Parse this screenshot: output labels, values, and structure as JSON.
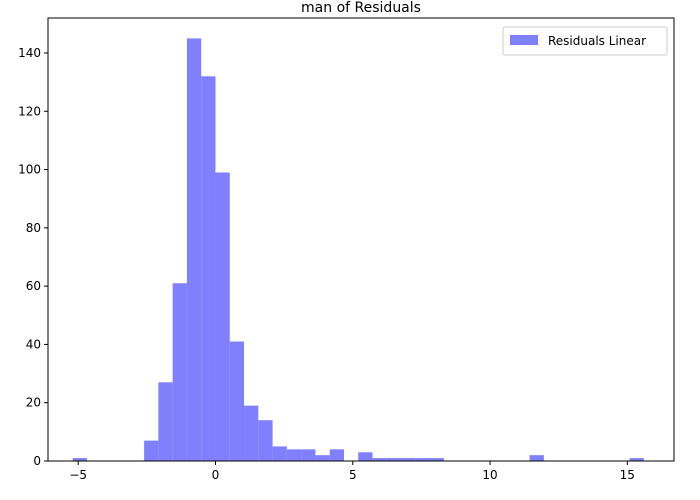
{
  "chart_data": {
    "type": "bar",
    "title": "man of Residuals",
    "xlabel": "",
    "ylabel": "",
    "xlim": [
      -6.1,
      16.7
    ],
    "ylim": [
      0,
      152
    ],
    "x_ticks": [
      -5,
      0,
      5,
      10,
      15
    ],
    "y_ticks": [
      0,
      20,
      40,
      60,
      80,
      100,
      120,
      140
    ],
    "bin_width": 0.52,
    "bin_left_edges": [
      -5.2,
      -2.6,
      -2.08,
      -1.56,
      -1.04,
      -0.52,
      0.0,
      0.52,
      1.04,
      1.56,
      2.08,
      2.6,
      3.12,
      3.64,
      4.16,
      5.2,
      5.72,
      6.24,
      6.76,
      7.28,
      7.8,
      11.44,
      15.08
    ],
    "values": [
      1,
      7,
      27,
      61,
      145,
      132,
      99,
      41,
      19,
      14,
      5,
      4,
      4,
      2,
      4,
      3,
      1,
      1,
      1,
      1,
      1,
      2,
      1
    ],
    "color": "#8080ff",
    "grid": false,
    "legend_position": "top-right",
    "series": [
      {
        "name": "Residuals Linear",
        "color": "#8080ff"
      }
    ]
  }
}
